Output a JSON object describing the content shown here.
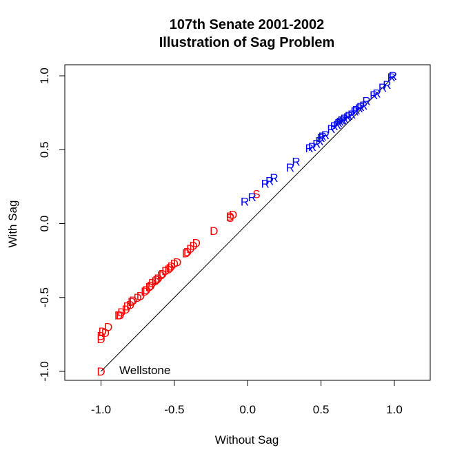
{
  "chart_data": {
    "type": "scatter",
    "title": "107th Senate 2001-2002",
    "subtitle": "Illustration of Sag Problem",
    "xlabel": "Without Sag",
    "ylabel": "With Sag",
    "xlim": [
      -1.0,
      1.0
    ],
    "ylim": [
      -1.0,
      1.0
    ],
    "xticks": [
      "-1.0",
      "-0.5",
      "0.0",
      "0.5",
      "1.0"
    ],
    "yticks": [
      "-1.0",
      "-0.5",
      "0.0",
      "0.5",
      "1.0"
    ],
    "reference_line": "y = x",
    "annotation": "Wellstone",
    "colors": {
      "D": "#ff0000",
      "S": "#ff0000",
      "R": "#0000ff",
      "line": "#000000"
    },
    "series": [
      {
        "label": "D",
        "points": [
          [
            -1.0,
            -1.0
          ],
          [
            -1.0,
            -0.78
          ],
          [
            -1.0,
            -0.76
          ],
          [
            -0.99,
            -0.73
          ],
          [
            -0.97,
            -0.74
          ],
          [
            -0.95,
            -0.7
          ],
          [
            -0.88,
            -0.62
          ],
          [
            -0.87,
            -0.62
          ],
          [
            -0.86,
            -0.6
          ],
          [
            -0.83,
            -0.58
          ],
          [
            -0.82,
            -0.56
          ],
          [
            -0.8,
            -0.55
          ],
          [
            -0.79,
            -0.53
          ],
          [
            -0.78,
            -0.52
          ],
          [
            -0.75,
            -0.5
          ],
          [
            -0.73,
            -0.49
          ],
          [
            -0.7,
            -0.46
          ],
          [
            -0.69,
            -0.45
          ],
          [
            -0.67,
            -0.43
          ],
          [
            -0.66,
            -0.42
          ],
          [
            -0.65,
            -0.4
          ],
          [
            -0.63,
            -0.39
          ],
          [
            -0.62,
            -0.38
          ],
          [
            -0.61,
            -0.37
          ],
          [
            -0.59,
            -0.35
          ],
          [
            -0.58,
            -0.34
          ],
          [
            -0.56,
            -0.32
          ],
          [
            -0.54,
            -0.31
          ],
          [
            -0.53,
            -0.3
          ],
          [
            -0.52,
            -0.29
          ],
          [
            -0.5,
            -0.27
          ],
          [
            -0.48,
            -0.26
          ],
          [
            -0.42,
            -0.2
          ],
          [
            -0.41,
            -0.19
          ],
          [
            -0.39,
            -0.17
          ],
          [
            -0.37,
            -0.15
          ],
          [
            -0.35,
            -0.13
          ],
          [
            -0.23,
            -0.05
          ],
          [
            -0.12,
            0.05
          ],
          [
            -0.1,
            0.06
          ]
        ]
      },
      {
        "label": "S",
        "points": [
          [
            -0.12,
            0.04
          ],
          [
            0.06,
            0.2
          ]
        ]
      },
      {
        "label": "R",
        "points": [
          [
            -0.02,
            0.15
          ],
          [
            0.03,
            0.18
          ],
          [
            0.12,
            0.27
          ],
          [
            0.15,
            0.29
          ],
          [
            0.18,
            0.31
          ],
          [
            0.29,
            0.38
          ],
          [
            0.33,
            0.42
          ],
          [
            0.42,
            0.51
          ],
          [
            0.44,
            0.52
          ],
          [
            0.47,
            0.54
          ],
          [
            0.49,
            0.56
          ],
          [
            0.5,
            0.58
          ],
          [
            0.51,
            0.59
          ],
          [
            0.53,
            0.6
          ],
          [
            0.57,
            0.64
          ],
          [
            0.59,
            0.66
          ],
          [
            0.61,
            0.67
          ],
          [
            0.62,
            0.68
          ],
          [
            0.63,
            0.69
          ],
          [
            0.64,
            0.7
          ],
          [
            0.65,
            0.7
          ],
          [
            0.66,
            0.71
          ],
          [
            0.68,
            0.72
          ],
          [
            0.69,
            0.73
          ],
          [
            0.71,
            0.74
          ],
          [
            0.73,
            0.76
          ],
          [
            0.74,
            0.77
          ],
          [
            0.76,
            0.78
          ],
          [
            0.77,
            0.79
          ],
          [
            0.79,
            0.8
          ],
          [
            0.81,
            0.83
          ],
          [
            0.86,
            0.87
          ],
          [
            0.88,
            0.88
          ],
          [
            0.92,
            0.92
          ],
          [
            0.95,
            0.94
          ],
          [
            0.98,
            0.99
          ],
          [
            0.99,
            1.0
          ]
        ]
      }
    ]
  }
}
